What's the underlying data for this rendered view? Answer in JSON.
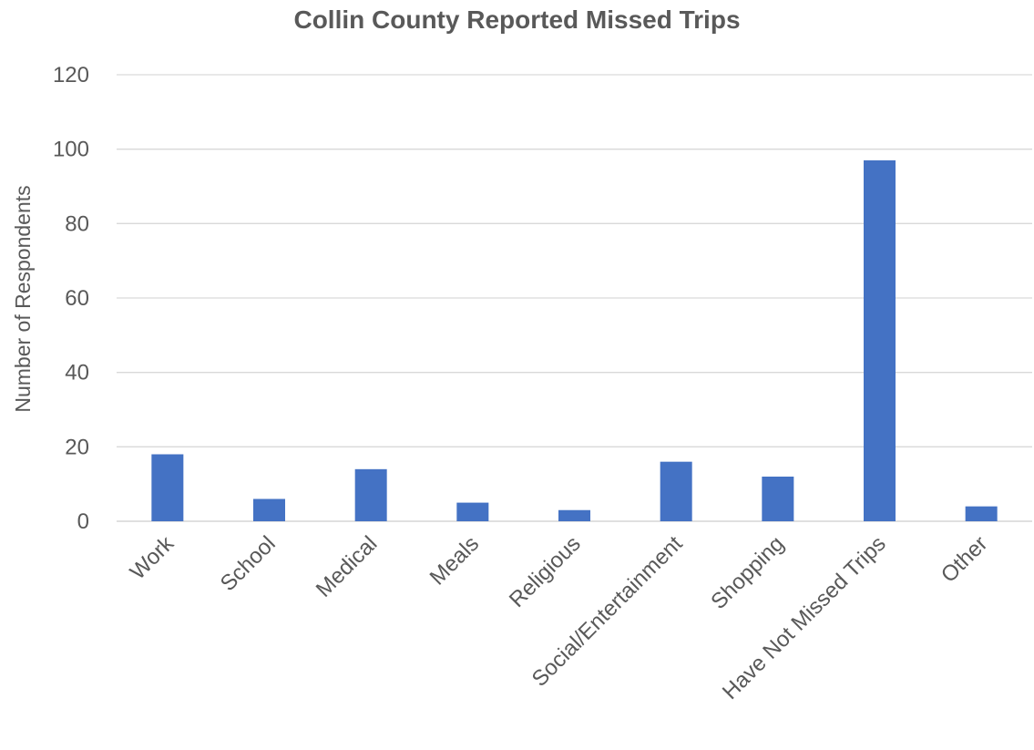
{
  "chart_data": {
    "type": "bar",
    "title": "Collin County Reported Missed Trips",
    "ylabel": "Number of Respondents",
    "xlabel": "",
    "categories": [
      "Work",
      "School",
      "Medical",
      "Meals",
      "Religious",
      "Social/Entertainment",
      "Shopping",
      "Have Not Missed Trips",
      "Other"
    ],
    "values": [
      18,
      6,
      14,
      5,
      3,
      16,
      12,
      97,
      4
    ],
    "ylim": [
      0,
      120
    ],
    "yticks": [
      0,
      20,
      40,
      60,
      80,
      100,
      120
    ],
    "grid": true,
    "legend": "none",
    "colors": {
      "bar": "#4472C4",
      "grid": "#D9D9D9",
      "text": "#595959"
    }
  }
}
